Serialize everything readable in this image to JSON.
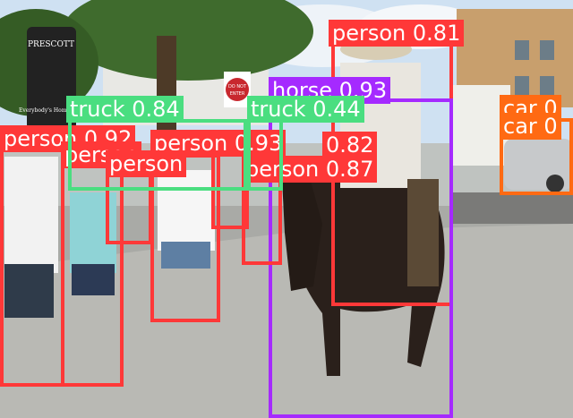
{
  "image": {
    "description_free": true,
    "signs": {
      "town_sign_top": "PRESCOTT",
      "town_sign_bottom": "Everybody's Hometown",
      "stop_sign_line1": "DO NOT",
      "stop_sign_line2": "ENTER"
    }
  },
  "colors": {
    "person": "#ff3838",
    "horse": "#a52aff",
    "truck": "#4ade80",
    "car": "#ff6a13"
  },
  "detections": [
    {
      "cls": "person",
      "text": "person 0.81"
    },
    {
      "cls": "horse",
      "text": "horse 0.93"
    },
    {
      "cls": "person",
      "text": "person 0.87"
    },
    {
      "cls": "person",
      "text": "person 0.93"
    },
    {
      "cls": "person",
      "text": "person 0.92"
    },
    {
      "cls": "person",
      "text": "person"
    },
    {
      "cls": "person",
      "text": "person"
    },
    {
      "cls": "person",
      "text": "0.82"
    },
    {
      "cls": "truck",
      "text": "truck 0.84"
    },
    {
      "cls": "truck",
      "text": "truck 0.44"
    },
    {
      "cls": "car",
      "text": "car 0"
    },
    {
      "cls": "car",
      "text": "car 0"
    }
  ]
}
